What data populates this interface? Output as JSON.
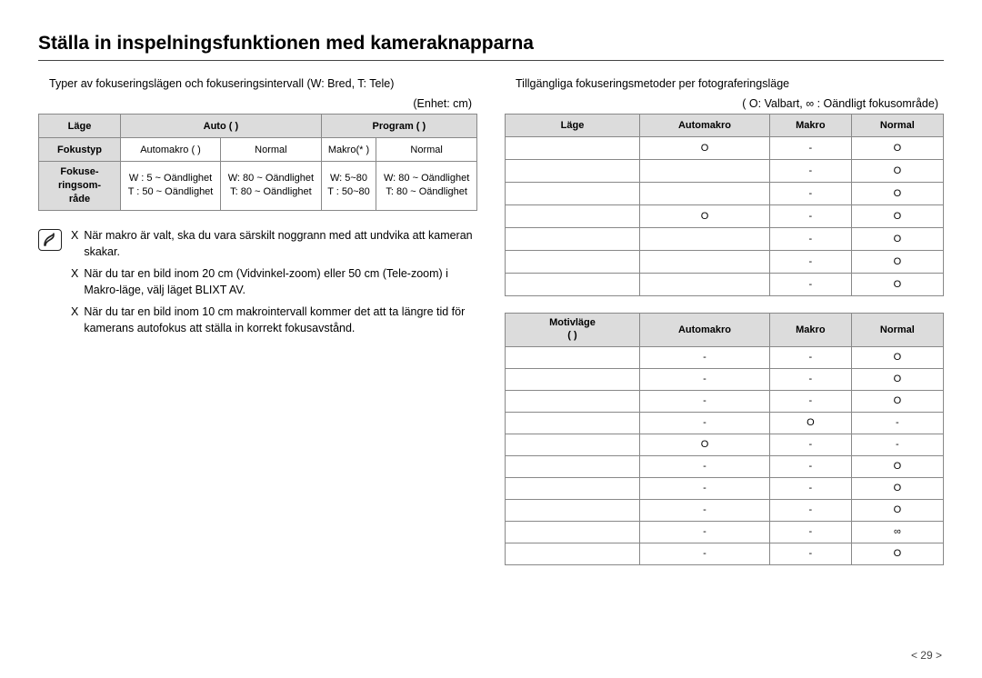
{
  "title": "Ställa in inspelningsfunktionen med kameraknapparna",
  "left": {
    "intro": "Typer av fokuseringslägen och fokuseringsintervall (W: Bred, T: Tele)",
    "unit": "(Enhet: cm)",
    "table1": {
      "headers": {
        "mode": "Läge",
        "auto": "Auto (        )",
        "program": "Program (        )"
      },
      "rows": {
        "fokustyp": {
          "label": "Fokustyp",
          "auto1": "Automakro (  )",
          "auto2": "Normal",
          "prog1": "Makro(*     )",
          "prog2": "Normal"
        },
        "range": {
          "label": "Fokuse-\nringsom-\nråde",
          "auto1": "W : 5 ~ Oändlighet\nT : 50 ~ Oändlighet",
          "auto2": "W: 80 ~ Oändlighet\nT: 80 ~ Oändlighet",
          "prog1": "W: 5~80\nT : 50~80",
          "prog2": "W: 80 ~ Oändlighet\nT: 80 ~ Oändlighet"
        }
      }
    },
    "notes": [
      "När makro är valt, ska du vara särskilt noggrann med att undvika att kameran skakar.",
      "När du tar en bild inom 20 cm (Vidvinkel-zoom) eller 50 cm (Tele-zoom) i Makro-läge, välj läget BLIXT AV.",
      "När du tar en bild inom 10 cm makrointervall kommer det att ta längre tid för kamerans autofokus att ställa in korrekt fokusavstånd."
    ],
    "noteBullet": "X"
  },
  "right": {
    "intro": "Tillgängliga fokuseringsmetoder per fotograferingsläge",
    "legend": "(  O: Valbart, ∞ :  Oändligt fokusområde)",
    "table2": {
      "headers": {
        "mode": "Läge",
        "c1": "Automakro",
        "c2": "Makro",
        "c3": "Normal"
      },
      "rows": [
        {
          "mode": "",
          "c1": "O",
          "c2": "-",
          "c3": "O"
        },
        {
          "mode": "",
          "c1": "",
          "c2": "-",
          "c3": "O"
        },
        {
          "mode": "",
          "c1": "",
          "c2": "-",
          "c3": "O"
        },
        {
          "mode": "",
          "c1": "O",
          "c2": "-",
          "c3": "O"
        },
        {
          "mode": "",
          "c1": "",
          "c2": "-",
          "c3": "O"
        },
        {
          "mode": "",
          "c1": "",
          "c2": "-",
          "c3": "O"
        },
        {
          "mode": "",
          "c1": "",
          "c2": "-",
          "c3": "O"
        }
      ]
    },
    "table3": {
      "headers": {
        "mode": "Motivläge\n(        )",
        "c1": "Automakro",
        "c2": "Makro",
        "c3": "Normal"
      },
      "rows": [
        {
          "mode": "",
          "c1": "-",
          "c2": "-",
          "c3": "O"
        },
        {
          "mode": "",
          "c1": "-",
          "c2": "-",
          "c3": "O"
        },
        {
          "mode": "",
          "c1": "-",
          "c2": "-",
          "c3": "O"
        },
        {
          "mode": "",
          "c1": "-",
          "c2": "O",
          "c3": "-"
        },
        {
          "mode": "",
          "c1": "O",
          "c2": "-",
          "c3": "-"
        },
        {
          "mode": "",
          "c1": "-",
          "c2": "-",
          "c3": "O"
        },
        {
          "mode": "",
          "c1": "-",
          "c2": "-",
          "c3": "O"
        },
        {
          "mode": "",
          "c1": "-",
          "c2": "-",
          "c3": "O"
        },
        {
          "mode": "",
          "c1": "-",
          "c2": "-",
          "c3": "∞"
        },
        {
          "mode": "",
          "c1": "-",
          "c2": "-",
          "c3": "O"
        }
      ]
    }
  },
  "pageNumber": "< 29 >"
}
